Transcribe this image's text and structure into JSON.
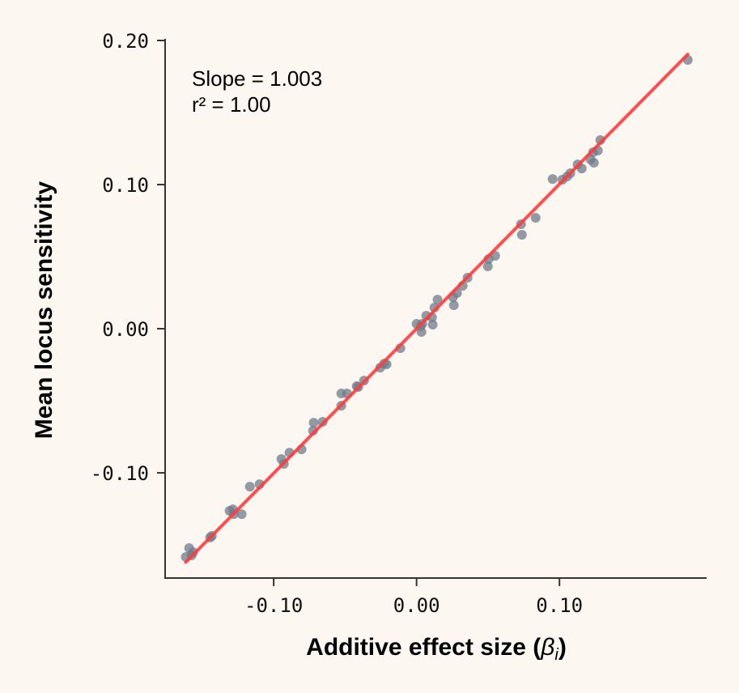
{
  "chart_data": {
    "type": "scatter",
    "title": "",
    "xlabel": "Additive effect size (βᵢ)",
    "xlabel_parts": {
      "text": "Additive effect size (",
      "symbol": "β",
      "subscript": "i",
      "close": ")"
    },
    "ylabel": "Mean locus sensitivity",
    "xlim": [
      -0.176,
      0.203
    ],
    "ylim": [
      -0.173,
      0.2
    ],
    "x_ticks": [
      -0.1,
      0.0,
      0.1
    ],
    "x_tick_labels": [
      "-0.10",
      "0.00",
      "0.10"
    ],
    "y_ticks": [
      -0.1,
      0.0,
      0.1,
      0.2
    ],
    "y_tick_labels": [
      "-0.10",
      "0.00",
      "0.10",
      "0.20"
    ],
    "grid": false,
    "annotations": [
      "Slope = 1.003",
      "r² = 1.00"
    ],
    "fit_line": {
      "slope": 1.003,
      "intercept": 0.0,
      "r2": 1.0
    },
    "colors": {
      "points": "#6f7b8a",
      "fit_line": "#ff3b3b",
      "background": "#fcf7f1",
      "axes": "#3a332c"
    },
    "points": [
      [
        -0.1615,
        -0.1584
      ],
      [
        -0.1592,
        -0.1522
      ],
      [
        -0.1575,
        -0.1573
      ],
      [
        -0.1564,
        -0.1551
      ],
      [
        -0.1445,
        -0.1449
      ],
      [
        -0.1433,
        -0.1438
      ],
      [
        -0.1309,
        -0.1264
      ],
      [
        -0.1286,
        -0.1253
      ],
      [
        -0.128,
        -0.1287
      ],
      [
        -0.1224,
        -0.1287
      ],
      [
        -0.1167,
        -0.1096
      ],
      [
        -0.1099,
        -0.1079
      ],
      [
        -0.0946,
        -0.0904
      ],
      [
        -0.0929,
        -0.0938
      ],
      [
        -0.089,
        -0.086
      ],
      [
        -0.0805,
        -0.0837
      ],
      [
        -0.0725,
        -0.0708
      ],
      [
        -0.072,
        -0.0652
      ],
      [
        -0.0657,
        -0.0646
      ],
      [
        -0.0527,
        -0.0449
      ],
      [
        -0.0527,
        -0.0534
      ],
      [
        -0.0487,
        -0.0449
      ],
      [
        -0.0419,
        -0.0399
      ],
      [
        -0.0408,
        -0.0404
      ],
      [
        -0.0368,
        -0.036
      ],
      [
        -0.0255,
        -0.027
      ],
      [
        -0.0227,
        -0.0242
      ],
      [
        -0.021,
        -0.0247
      ],
      [
        -0.0113,
        -0.0135
      ],
      [
        0.0,
        0.0034
      ],
      [
        0.0028,
        0.0017
      ],
      [
        0.0034,
        -0.0022
      ],
      [
        0.004,
        0.0034
      ],
      [
        0.0068,
        0.009
      ],
      [
        0.0108,
        0.0079
      ],
      [
        0.0113,
        0.0028
      ],
      [
        0.0125,
        0.0146
      ],
      [
        0.0147,
        0.0202
      ],
      [
        0.0255,
        0.0219
      ],
      [
        0.0261,
        0.0163
      ],
      [
        0.0283,
        0.0247
      ],
      [
        0.0323,
        0.0298
      ],
      [
        0.0357,
        0.0354
      ],
      [
        0.0499,
        0.0433
      ],
      [
        0.0504,
        0.0483
      ],
      [
        0.055,
        0.0506
      ],
      [
        0.0731,
        0.0725
      ],
      [
        0.0737,
        0.0652
      ],
      [
        0.0833,
        0.077
      ],
      [
        0.0952,
        0.1039
      ],
      [
        0.102,
        0.1034
      ],
      [
        0.1054,
        0.1056
      ],
      [
        0.1076,
        0.1079
      ],
      [
        0.1127,
        0.114
      ],
      [
        0.1156,
        0.1112
      ],
      [
        0.1218,
        0.1174
      ],
      [
        0.1235,
        0.1225
      ],
      [
        0.1241,
        0.1152
      ],
      [
        0.1269,
        0.1236
      ],
      [
        0.1286,
        0.1309
      ],
      [
        0.1898,
        0.1865
      ]
    ]
  }
}
